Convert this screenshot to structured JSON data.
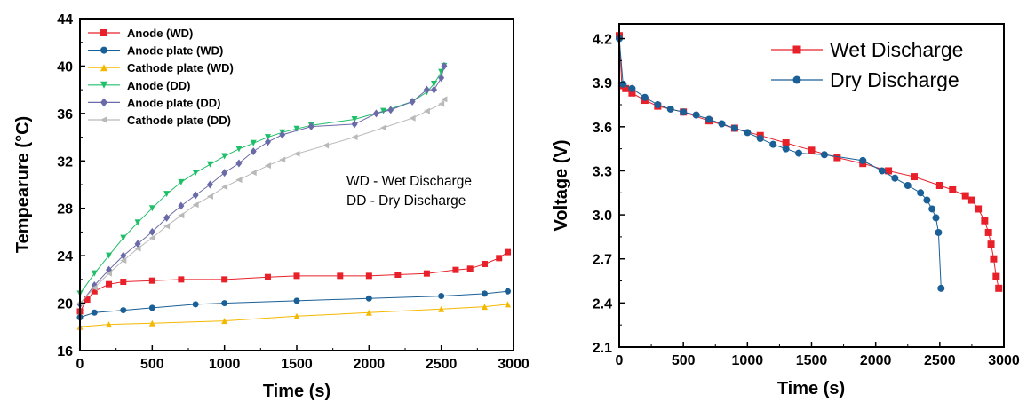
{
  "chart_data": [
    {
      "type": "line",
      "xlabel": "Time (s)",
      "ylabel": "Tempearure (°C)",
      "xlim": [
        0,
        3000
      ],
      "ylim": [
        16,
        44
      ],
      "xticks": [
        0,
        500,
        1000,
        1500,
        2000,
        2500,
        3000
      ],
      "yticks": [
        16,
        20,
        24,
        28,
        32,
        36,
        40,
        44
      ],
      "grid": false,
      "legend_position": "top-left",
      "annotations": [
        "WD - Wet Discharge",
        "DD - Dry Discharge"
      ],
      "series": [
        {
          "name": "Anode (WD)",
          "color": "#e8202a",
          "marker": "square",
          "x": [
            0,
            50,
            100,
            200,
            300,
            500,
            700,
            1000,
            1300,
            1500,
            1800,
            2000,
            2200,
            2400,
            2600,
            2700,
            2800,
            2900,
            2960
          ],
          "y": [
            19.3,
            20.3,
            21.0,
            21.6,
            21.8,
            21.9,
            22.0,
            22.0,
            22.2,
            22.3,
            22.3,
            22.3,
            22.4,
            22.5,
            22.8,
            22.9,
            23.3,
            23.8,
            24.3
          ]
        },
        {
          "name": "Anode plate (WD)",
          "color": "#1a5f96",
          "marker": "circle",
          "x": [
            0,
            100,
            300,
            500,
            800,
            1000,
            1500,
            2000,
            2500,
            2800,
            2960
          ],
          "y": [
            18.8,
            19.2,
            19.4,
            19.6,
            19.9,
            20.0,
            20.2,
            20.4,
            20.6,
            20.8,
            21.0
          ]
        },
        {
          "name": "Cathode plate (WD)",
          "color": "#f5b800",
          "marker": "triangle-up",
          "x": [
            0,
            200,
            500,
            1000,
            1500,
            2000,
            2500,
            2800,
            2960
          ],
          "y": [
            18.0,
            18.2,
            18.3,
            18.5,
            18.9,
            19.2,
            19.5,
            19.7,
            19.9
          ]
        },
        {
          "name": "Anode (DD)",
          "color": "#1fbf6a",
          "marker": "triangle-down",
          "x": [
            0,
            100,
            200,
            300,
            400,
            500,
            600,
            700,
            800,
            900,
            1000,
            1100,
            1200,
            1300,
            1400,
            1500,
            1600,
            1900,
            2100,
            2300,
            2400,
            2450,
            2500,
            2520
          ],
          "y": [
            20.8,
            22.5,
            24.0,
            25.5,
            26.8,
            28.0,
            29.2,
            30.2,
            31.0,
            31.7,
            32.4,
            33.0,
            33.5,
            34.0,
            34.4,
            34.7,
            35.0,
            35.5,
            36.2,
            37.0,
            37.8,
            38.5,
            39.5,
            40.0
          ]
        },
        {
          "name": "Anode plate (DD)",
          "color": "#6a6aa8",
          "marker": "diamond",
          "x": [
            0,
            100,
            200,
            300,
            400,
            500,
            600,
            700,
            800,
            900,
            1000,
            1100,
            1200,
            1300,
            1400,
            1600,
            1900,
            2050,
            2150,
            2300,
            2400,
            2450,
            2500,
            2520
          ],
          "y": [
            19.9,
            21.5,
            22.8,
            24.0,
            25.0,
            26.0,
            27.2,
            28.2,
            29.1,
            30.0,
            31.0,
            31.8,
            32.8,
            33.6,
            34.2,
            34.9,
            35.1,
            36.0,
            36.3,
            37.0,
            38.0,
            38.0,
            39.0,
            40.0
          ]
        },
        {
          "name": "Cathode plate (DD)",
          "color": "#b9b9b9",
          "marker": "triangle-left",
          "x": [
            0,
            100,
            200,
            300,
            400,
            500,
            600,
            700,
            800,
            900,
            1000,
            1100,
            1200,
            1300,
            1400,
            1500,
            1700,
            1900,
            2100,
            2300,
            2400,
            2500,
            2520
          ],
          "y": [
            20.0,
            21.3,
            22.5,
            23.6,
            24.6,
            25.5,
            26.5,
            27.4,
            28.3,
            29.0,
            29.8,
            30.4,
            31.0,
            31.6,
            32.1,
            32.6,
            33.3,
            34.0,
            34.8,
            35.6,
            36.2,
            36.8,
            37.2
          ]
        }
      ]
    },
    {
      "type": "line",
      "xlabel": "Time (s)",
      "ylabel": "Voltage (V)",
      "xlim": [
        0,
        3000
      ],
      "ylim": [
        2.1,
        4.3
      ],
      "xticks": [
        0,
        500,
        1000,
        1500,
        2000,
        2500,
        3000
      ],
      "yticks": [
        2.1,
        2.4,
        2.7,
        3.0,
        3.3,
        3.6,
        3.9,
        4.2
      ],
      "grid": false,
      "legend_position": "top-right",
      "series": [
        {
          "name": "Wet Discharge",
          "color": "#e8202a",
          "marker": "square",
          "x": [
            0,
            20,
            50,
            100,
            200,
            300,
            500,
            700,
            900,
            1100,
            1300,
            1500,
            1700,
            1900,
            2100,
            2300,
            2500,
            2600,
            2700,
            2750,
            2800,
            2850,
            2880,
            2900,
            2920,
            2940,
            2960
          ],
          "y": [
            4.22,
            3.88,
            3.86,
            3.83,
            3.78,
            3.74,
            3.7,
            3.64,
            3.59,
            3.54,
            3.49,
            3.44,
            3.39,
            3.35,
            3.3,
            3.26,
            3.2,
            3.17,
            3.13,
            3.1,
            3.04,
            2.96,
            2.88,
            2.8,
            2.7,
            2.58,
            2.5
          ]
        },
        {
          "name": "Dry Discharge",
          "color": "#1a5f96",
          "marker": "circle",
          "x": [
            0,
            30,
            100,
            200,
            300,
            400,
            500,
            600,
            700,
            800,
            900,
            1000,
            1100,
            1200,
            1300,
            1400,
            1600,
            1900,
            2050,
            2150,
            2250,
            2350,
            2400,
            2440,
            2470,
            2490,
            2510
          ],
          "y": [
            4.2,
            3.89,
            3.86,
            3.8,
            3.75,
            3.72,
            3.7,
            3.68,
            3.65,
            3.62,
            3.59,
            3.56,
            3.52,
            3.48,
            3.45,
            3.42,
            3.41,
            3.37,
            3.3,
            3.25,
            3.2,
            3.15,
            3.1,
            3.04,
            2.98,
            2.88,
            2.5
          ]
        }
      ]
    }
  ]
}
